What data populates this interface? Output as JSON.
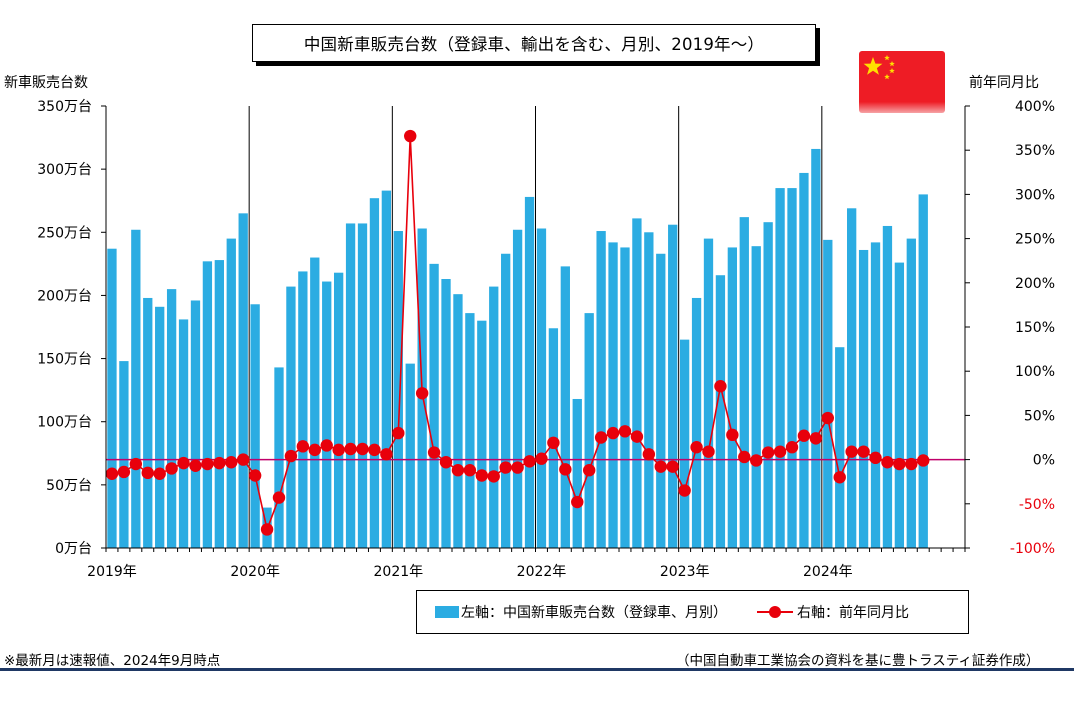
{
  "title": "中国新車販売台数（登録車、輸出を含む、月別、2019年～）",
  "left_axis_title": "新車販売台数",
  "right_axis_title": "前年同月比",
  "legend": {
    "bar_label": "左軸：中国新車販売台数（登録車、月別）",
    "line_label": "右軸：前年同月比"
  },
  "note": "※最新月は速報値、2024年9月時点",
  "source": "（中国自動車工業協会の資料を基に豊トラスティ証券作成）",
  "colors": {
    "bar": "#2bace2",
    "line": "#e8000b",
    "zero_line": "#c0006a",
    "divider": "#000000"
  },
  "flag_icon": "china-flag-icon",
  "chart_data": {
    "type": "bar+line",
    "x_labels": [
      "2019年",
      "2020年",
      "2021年",
      "2022年",
      "2023年",
      "2024年"
    ],
    "months_per_year": 12,
    "left_axis": {
      "ylim": [
        0,
        350
      ],
      "ticks": [
        "0万台",
        "50万台",
        "100万台",
        "150万台",
        "200万台",
        "250万台",
        "300万台",
        "350万台"
      ]
    },
    "right_axis": {
      "ylim": [
        -100,
        400
      ],
      "ticks": [
        "-100%",
        "-50%",
        "0%",
        "50%",
        "100%",
        "150%",
        "200%",
        "250%",
        "300%",
        "350%",
        "400%"
      ]
    },
    "series": [
      {
        "name": "左軸：中国新車販売台数（登録車、月別）",
        "type": "bar",
        "axis": "left",
        "values": [
          237,
          148,
          252,
          198,
          191,
          205,
          181,
          196,
          227,
          228,
          245,
          265,
          193,
          32,
          143,
          207,
          219,
          230,
          211,
          218,
          257,
          257,
          277,
          283,
          251,
          146,
          253,
          225,
          213,
          201,
          186,
          180,
          207,
          233,
          252,
          278,
          253,
          174,
          223,
          118,
          186,
          251,
          242,
          238,
          261,
          250,
          233,
          256,
          165,
          198,
          245,
          216,
          238,
          262,
          239,
          258,
          285,
          285,
          297,
          316,
          244,
          159,
          269,
          236,
          242,
          255,
          226,
          245,
          280
        ]
      },
      {
        "name": "右軸：前年同月比",
        "type": "line",
        "axis": "right",
        "values": [
          -16,
          -14,
          -5,
          -15,
          -16,
          -10,
          -4,
          -7,
          -5,
          -4,
          -3,
          0,
          -18,
          -79,
          -43,
          4,
          15,
          11,
          16,
          11,
          12,
          12,
          11,
          6,
          30,
          366,
          75,
          8,
          -3,
          -12,
          -12,
          -18,
          -19,
          -9,
          -9,
          -2,
          1,
          19,
          -11,
          -48,
          -12,
          25,
          30,
          32,
          26,
          6,
          -8,
          -8,
          -35,
          14,
          9,
          83,
          28,
          3,
          -1,
          8,
          9,
          14,
          27,
          24,
          47,
          -20,
          9,
          9,
          2,
          -3,
          -5,
          -5,
          -1
        ]
      }
    ]
  }
}
